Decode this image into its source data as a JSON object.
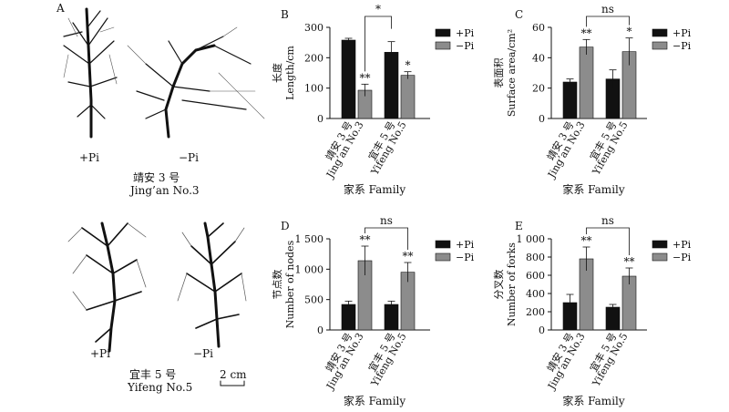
{
  "panel_a": {
    "letter": "A",
    "top_treatments": [
      "+Pi",
      "−Pi"
    ],
    "top_variety_cn": "靖安 3 号",
    "top_variety_en": "Jing’an No.3",
    "bottom_treatments": [
      "+Pi",
      "−Pi"
    ],
    "bottom_variety_cn": "宜丰 5 号",
    "bottom_variety_en": "Yifeng No.5",
    "scale_bar": "2 cm"
  },
  "colors": {
    "plus_pi": "#111111",
    "minus_pi": "#8c8c8c"
  },
  "chart_data": [
    {
      "id": "B",
      "type": "bar",
      "ylabel_cn": "长度",
      "ylabel_en": "Length/cm",
      "xlabel": "家系 Family",
      "categories": [
        "靖安 3 号|Jing’an No.3",
        "宜丰 5 号|Yifeng No.5"
      ],
      "ylim": [
        0,
        300
      ],
      "yticks": [
        "0",
        "100",
        "200",
        "300"
      ],
      "ytick_values": [
        0,
        100,
        200,
        300
      ],
      "legend": [
        "+Pi",
        "−Pi"
      ],
      "series": [
        {
          "name": "+Pi",
          "values": [
            258,
            218
          ],
          "errors": [
            6,
            35
          ],
          "marks": [
            "",
            ""
          ]
        },
        {
          "name": "−Pi",
          "values": [
            93,
            142
          ],
          "errors": [
            20,
            12
          ],
          "marks": [
            "**",
            "*"
          ]
        }
      ],
      "bracket": {
        "label": "*",
        "from": [
          0,
          1
        ],
        "to": [
          1,
          0
        ]
      }
    },
    {
      "id": "C",
      "type": "bar",
      "ylabel_cn": "表面积",
      "ylabel_en": "Surface area/cm²",
      "xlabel": "家系 Family",
      "categories": [
        "靖安 3 号|Jing’an No.3",
        "宜丰 5 号|Yifeng No.5"
      ],
      "ylim": [
        0,
        60
      ],
      "yticks": [
        "0",
        "20",
        "40",
        "60"
      ],
      "ytick_values": [
        0,
        20,
        40,
        60
      ],
      "legend": [
        "+Pi",
        "−Pi"
      ],
      "series": [
        {
          "name": "+Pi",
          "values": [
            24,
            26
          ],
          "errors": [
            2,
            6
          ],
          "marks": [
            "",
            ""
          ]
        },
        {
          "name": "−Pi",
          "values": [
            47,
            44
          ],
          "errors": [
            5,
            9
          ],
          "marks": [
            "**",
            "*"
          ]
        }
      ],
      "bracket": {
        "label": "ns",
        "from": [
          0,
          1
        ],
        "to": [
          1,
          1
        ]
      }
    },
    {
      "id": "D",
      "type": "bar",
      "ylabel_cn": "节点数",
      "ylabel_en": "Number of nodes",
      "xlabel": "家系 Family",
      "categories": [
        "靖安 3 号|Jing’an No.3",
        "宜丰 5 号|Yifeng No.5"
      ],
      "ylim": [
        0,
        1500
      ],
      "yticks": [
        "0",
        "500",
        "1 000",
        "1 500"
      ],
      "ytick_values": [
        0,
        500,
        1000,
        1500
      ],
      "legend": [
        "+Pi",
        "−Pi"
      ],
      "series": [
        {
          "name": "+Pi",
          "values": [
            420,
            420
          ],
          "errors": [
            55,
            55
          ],
          "marks": [
            "",
            ""
          ]
        },
        {
          "name": "−Pi",
          "values": [
            1140,
            950
          ],
          "errors": [
            240,
            160
          ],
          "marks": [
            "**",
            "**"
          ]
        }
      ],
      "bracket": {
        "label": "ns",
        "from": [
          0,
          1
        ],
        "to": [
          1,
          1
        ]
      }
    },
    {
      "id": "E",
      "type": "bar",
      "ylabel_cn": "分叉数",
      "ylabel_en": "Number of forks",
      "xlabel": "家系 Family",
      "categories": [
        "靖安 3 号|Jing’an No.3",
        "宜丰 5 号|Yifeng No.5"
      ],
      "ylim": [
        0,
        1000
      ],
      "yticks": [
        "0",
        "200",
        "400",
        "600",
        "800",
        "1 000"
      ],
      "ytick_values": [
        0,
        200,
        400,
        600,
        800,
        1000
      ],
      "legend": [
        "+Pi",
        "−Pi"
      ],
      "series": [
        {
          "name": "+Pi",
          "values": [
            300,
            250
          ],
          "errors": [
            90,
            30
          ],
          "marks": [
            "",
            ""
          ]
        },
        {
          "name": "−Pi",
          "values": [
            780,
            590
          ],
          "errors": [
            130,
            90
          ],
          "marks": [
            "**",
            "**"
          ]
        }
      ],
      "bracket": {
        "label": "ns",
        "from": [
          0,
          1
        ],
        "to": [
          1,
          1
        ]
      }
    }
  ]
}
